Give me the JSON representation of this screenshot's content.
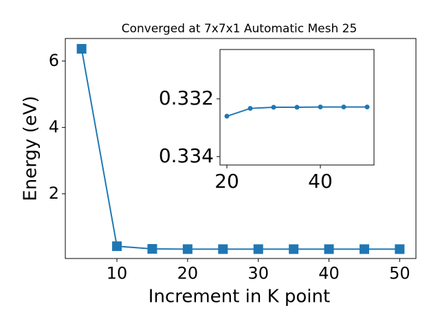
{
  "chart_data": [
    {
      "type": "line",
      "title": "Converged at 7x7x1 Automatic Mesh 25",
      "x_label": "Increment in K point",
      "y_label": "Energy (eV)",
      "x": [
        5,
        10,
        15,
        20,
        25,
        30,
        35,
        40,
        45,
        50
      ],
      "values": [
        6.37,
        0.42,
        0.34,
        0.3326,
        0.33233,
        0.33229,
        0.33229,
        0.33228,
        0.33228,
        0.33228
      ],
      "color": "#1f77b4",
      "marker": "square",
      "xlim": [
        2.7,
        52.3
      ],
      "xticks": [
        10,
        20,
        30,
        40,
        50
      ],
      "ylim": [
        0.05,
        6.68
      ],
      "yticks": [
        2,
        4,
        6
      ]
    },
    {
      "type": "line",
      "x": [
        20,
        25,
        30,
        35,
        40,
        45,
        50
      ],
      "values": [
        0.3326,
        0.33233,
        0.33229,
        0.33229,
        0.33228,
        0.33228,
        0.33228
      ],
      "color": "#1f77b4",
      "marker": "circle",
      "xlim": [
        18.53,
        51.47
      ],
      "xticks": [
        20,
        40
      ],
      "ylim": [
        0.33429,
        0.33029
      ],
      "yticks": [
        0.332,
        0.334
      ]
    }
  ]
}
